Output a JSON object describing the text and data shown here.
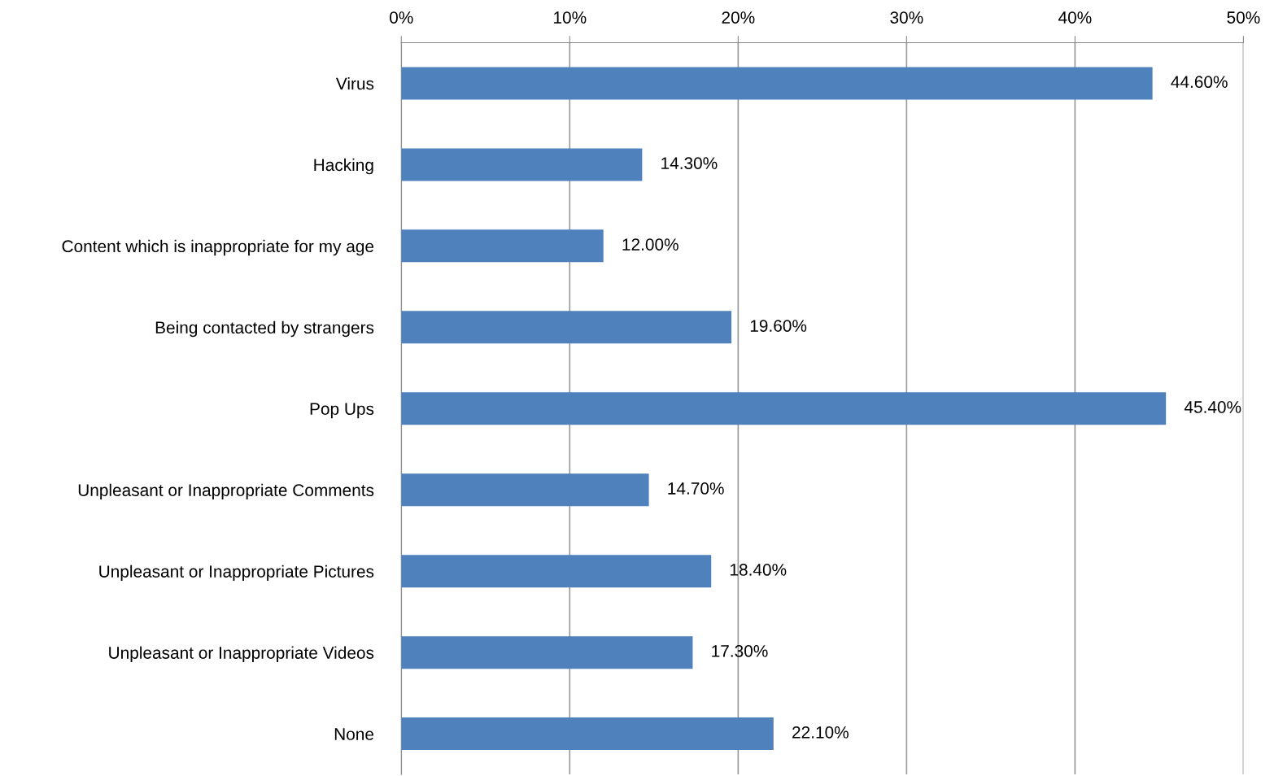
{
  "chart_data": {
    "type": "bar",
    "orientation": "horizontal",
    "categories": [
      "Virus",
      "Hacking",
      "Content which is inappropriate for my age",
      "Being contacted by strangers",
      "Pop Ups",
      "Unpleasant or Inappropriate Comments",
      "Unpleasant or Inappropriate Pictures",
      "Unpleasant or Inappropriate Videos",
      "None"
    ],
    "values": [
      44.6,
      14.3,
      12.0,
      19.6,
      45.4,
      14.7,
      18.4,
      17.3,
      22.1
    ],
    "value_labels": [
      "44.60%",
      "14.30%",
      "12.00%",
      "19.60%",
      "45.40%",
      "14.70%",
      "18.40%",
      "17.30%",
      "22.10%"
    ],
    "color": "#4f81bd",
    "xlim": [
      0,
      50
    ],
    "xticks": [
      {
        "value": 0,
        "label": "0%"
      },
      {
        "value": 10,
        "label": "10%"
      },
      {
        "value": 20,
        "label": "20%"
      },
      {
        "value": 30,
        "label": "30%"
      },
      {
        "value": 40,
        "label": "40%"
      },
      {
        "value": 50,
        "label": "50%"
      }
    ],
    "grid": "x",
    "legend": false
  }
}
